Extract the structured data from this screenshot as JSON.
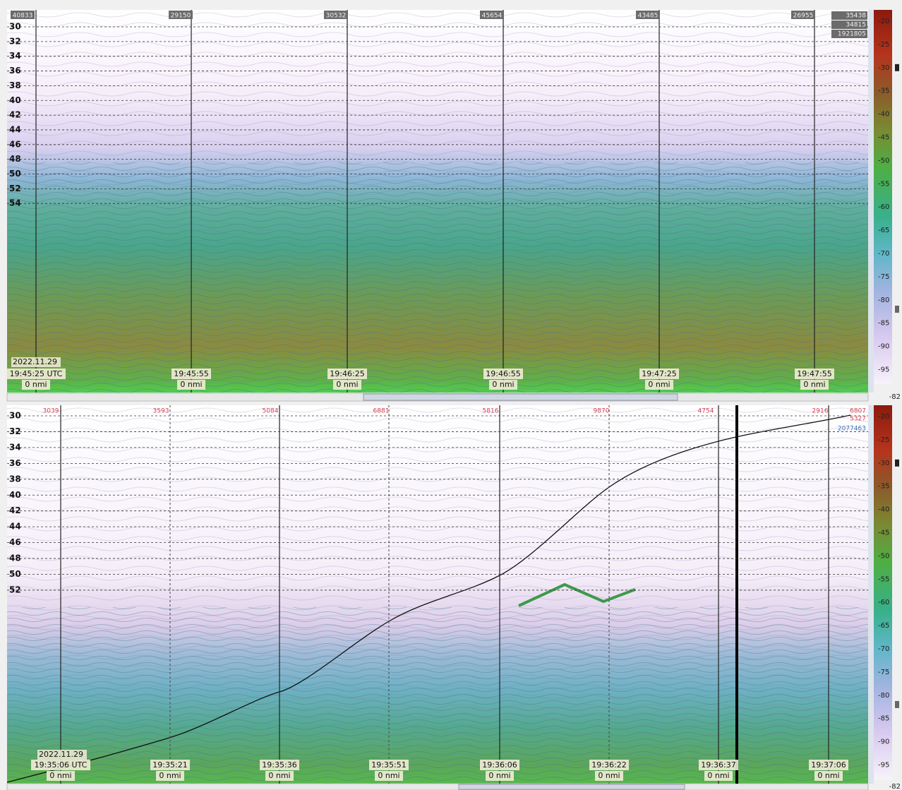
{
  "panels": [
    {
      "ping_labels": [
        "40833",
        "29150",
        "30532",
        "45654",
        "43485",
        "26955"
      ],
      "side_labels": [
        "35438",
        "34815",
        "1921805"
      ],
      "depths": [
        30,
        32,
        34,
        36,
        38,
        40,
        42,
        44,
        46,
        48,
        50,
        52,
        54
      ],
      "date": "2022.11.29",
      "times": [
        "19:45:25 UTC",
        "19:45:55",
        "19:46:25",
        "19:46:55",
        "19:47:25",
        "19:47:55"
      ],
      "distances": [
        "0 nmi",
        "0 nmi",
        "0 nmi",
        "0 nmi",
        "0 nmi",
        "0 nmi"
      ],
      "scale": [
        -20,
        -25,
        -30,
        -35,
        -40,
        -45,
        -50,
        -55,
        -60,
        -65,
        -70,
        -75,
        -80,
        -85,
        -90,
        -95
      ],
      "scale_readout": -82
    },
    {
      "ping_labels": [
        "3039",
        "3593",
        "5084",
        "6881",
        "5816",
        "9870",
        "4754",
        "2916"
      ],
      "side_labels": [
        "6807",
        "5327",
        "2077463"
      ],
      "depths": [
        30,
        32,
        34,
        36,
        38,
        40,
        42,
        44,
        46,
        48,
        50,
        52
      ],
      "date": "2022.11.29",
      "times": [
        "19:35:06 UTC",
        "19:35:21",
        "19:35:36",
        "19:35:51",
        "19:36:06",
        "19:36:22",
        "19:36:37",
        "19:37:06"
      ],
      "distances": [
        "0 nmi",
        "0 nmi",
        "0 nmi",
        "0 nmi",
        "0 nmi",
        "0 nmi",
        "0 nmi",
        "0 nmi"
      ],
      "scale": [
        -20,
        -25,
        -30,
        -35,
        -40,
        -45,
        -50,
        -55,
        -60,
        -65,
        -70,
        -75,
        -80,
        -85,
        -90,
        -95
      ],
      "scale_readout": -82
    }
  ]
}
